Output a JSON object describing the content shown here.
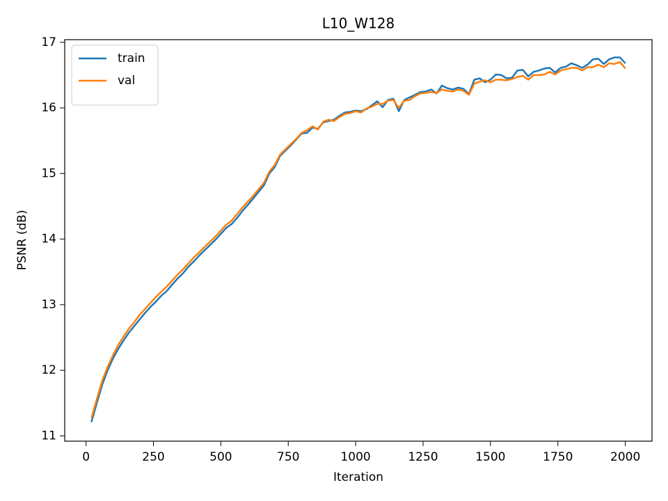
{
  "chart_data": {
    "type": "line",
    "title": "L10_W128",
    "xlabel": "Iteration",
    "ylabel": "PSNR (dB)",
    "x": [
      20,
      40,
      60,
      80,
      100,
      120,
      140,
      160,
      180,
      200,
      220,
      240,
      260,
      280,
      300,
      320,
      340,
      360,
      380,
      400,
      420,
      440,
      460,
      480,
      500,
      520,
      540,
      560,
      580,
      600,
      620,
      640,
      660,
      680,
      700,
      720,
      740,
      760,
      780,
      800,
      820,
      840,
      860,
      880,
      900,
      920,
      940,
      960,
      980,
      1000,
      1020,
      1040,
      1060,
      1080,
      1100,
      1120,
      1140,
      1160,
      1180,
      1200,
      1220,
      1240,
      1260,
      1280,
      1300,
      1320,
      1340,
      1360,
      1380,
      1400,
      1420,
      1440,
      1460,
      1480,
      1500,
      1520,
      1540,
      1560,
      1580,
      1600,
      1620,
      1640,
      1660,
      1680,
      1700,
      1720,
      1740,
      1760,
      1780,
      1800,
      1820,
      1840,
      1860,
      1880,
      1900,
      1920,
      1940,
      1960,
      1980,
      2000
    ],
    "series": [
      {
        "name": "train",
        "color": "#1f77b4",
        "values": [
          11.21,
          11.5,
          11.78,
          12.0,
          12.18,
          12.33,
          12.46,
          12.58,
          12.68,
          12.78,
          12.88,
          12.97,
          13.05,
          13.14,
          13.21,
          13.31,
          13.4,
          13.48,
          13.58,
          13.66,
          13.75,
          13.83,
          13.91,
          13.99,
          14.08,
          14.17,
          14.23,
          14.32,
          14.43,
          14.52,
          14.62,
          14.72,
          14.82,
          15.0,
          15.1,
          15.27,
          15.35,
          15.43,
          15.52,
          15.61,
          15.62,
          15.7,
          15.68,
          15.78,
          15.8,
          15.82,
          15.88,
          15.93,
          15.94,
          15.96,
          15.95,
          15.98,
          16.04,
          16.1,
          16.01,
          16.12,
          16.14,
          15.95,
          16.12,
          16.16,
          16.2,
          16.24,
          16.25,
          16.28,
          16.22,
          16.34,
          16.3,
          16.28,
          16.31,
          16.29,
          16.21,
          16.43,
          16.45,
          16.39,
          16.43,
          16.51,
          16.5,
          16.45,
          16.46,
          16.57,
          16.58,
          16.48,
          16.55,
          16.57,
          16.6,
          16.61,
          16.54,
          16.61,
          16.63,
          16.68,
          16.65,
          16.61,
          16.66,
          16.74,
          16.75,
          16.67,
          16.74,
          16.77,
          16.77,
          16.68
        ]
      },
      {
        "name": "val",
        "color": "#ff7f0e",
        "values": [
          11.27,
          11.56,
          11.84,
          12.05,
          12.23,
          12.39,
          12.52,
          12.64,
          12.74,
          12.85,
          12.94,
          13.03,
          13.12,
          13.2,
          13.28,
          13.37,
          13.46,
          13.54,
          13.63,
          13.72,
          13.8,
          13.88,
          13.96,
          14.04,
          14.13,
          14.22,
          14.28,
          14.38,
          14.48,
          14.57,
          14.66,
          14.76,
          14.86,
          15.03,
          15.13,
          15.29,
          15.37,
          15.45,
          15.53,
          15.62,
          15.66,
          15.72,
          15.67,
          15.79,
          15.82,
          15.8,
          15.86,
          15.91,
          15.92,
          15.95,
          15.93,
          15.99,
          16.02,
          16.06,
          16.06,
          16.11,
          16.12,
          16.0,
          16.11,
          16.12,
          16.18,
          16.22,
          16.23,
          16.24,
          16.23,
          16.28,
          16.26,
          16.25,
          16.28,
          16.26,
          16.2,
          16.37,
          16.4,
          16.42,
          16.39,
          16.43,
          16.43,
          16.42,
          16.44,
          16.47,
          16.49,
          16.43,
          16.5,
          16.5,
          16.51,
          16.55,
          16.51,
          16.57,
          16.59,
          16.61,
          16.61,
          16.57,
          16.62,
          16.62,
          16.66,
          16.62,
          16.68,
          16.67,
          16.7,
          16.6
        ]
      }
    ],
    "xlim": [
      -79,
      2099
    ],
    "xticks": [
      0,
      250,
      500,
      750,
      1000,
      1250,
      1500,
      1750,
      2000
    ],
    "ylim": [
      10.92,
      17.04
    ],
    "yticks": [
      11,
      12,
      13,
      14,
      15,
      16,
      17
    ],
    "grid": false,
    "legend": "upper left"
  }
}
